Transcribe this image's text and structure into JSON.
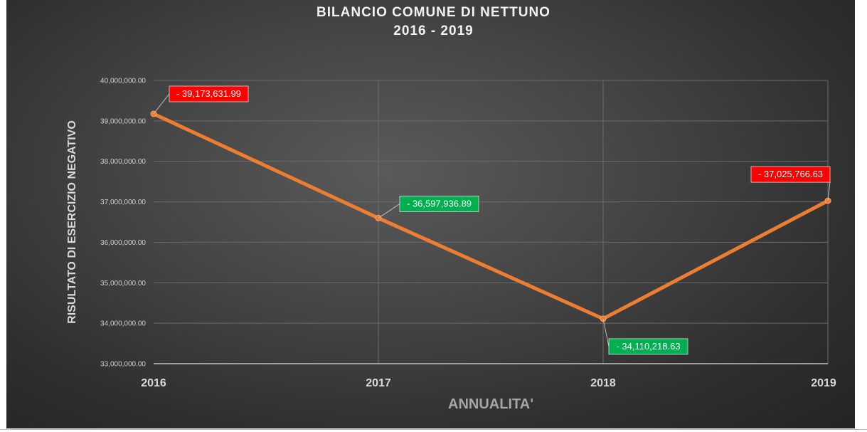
{
  "chart_data": {
    "type": "line",
    "title": "BILANCIO COMUNE DI NETTUNO",
    "subtitle": "2016 - 2019",
    "xlabel": "ANNUALITA'",
    "ylabel": "RISULTATO DI ESERCIZIO NEGATIVO",
    "categories": [
      "2016",
      "2017",
      "2018",
      "2019"
    ],
    "series": [
      {
        "values": [
          39173631.99,
          36597936.89,
          34110218.63,
          37025766.63
        ],
        "color": "#ed7d31"
      }
    ],
    "data_labels": [
      {
        "text": "- 39,173,631.99",
        "color": "#ff0000"
      },
      {
        "text": "- 36,597,936.89",
        "color": "#00b050"
      },
      {
        "text": "- 34,110,218.63",
        "color": "#00b050"
      },
      {
        "text": "- 37,025,766.63",
        "color": "#ff0000"
      }
    ],
    "ylim": [
      33000000,
      40000000
    ],
    "y_ticks": [
      {
        "value": 33000000,
        "label": "33,000,000.00"
      },
      {
        "value": 34000000,
        "label": "34,000,000.00"
      },
      {
        "value": 35000000,
        "label": "35,000,000.00"
      },
      {
        "value": 36000000,
        "label": "36,000,000.00"
      },
      {
        "value": 37000000,
        "label": "37,000,000.00"
      },
      {
        "value": 38000000,
        "label": "38,000,000.00"
      },
      {
        "value": 39000000,
        "label": "39,000,000.00"
      },
      {
        "value": 40000000,
        "label": "40,000,000.00"
      }
    ],
    "grid": true,
    "legend": "none",
    "background": "#3a3a3a"
  }
}
